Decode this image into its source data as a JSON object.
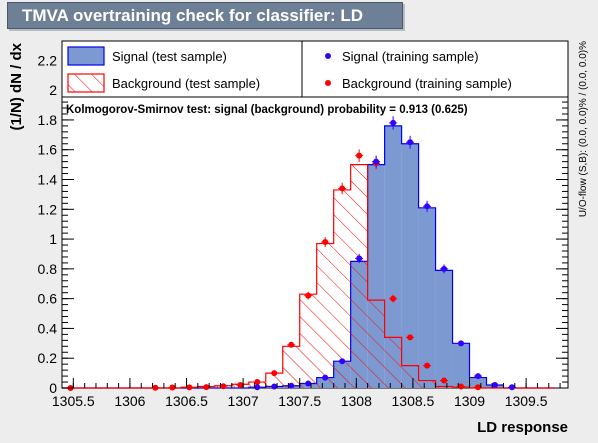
{
  "title": "TMVA overtraining check for classifier: LD",
  "colors": {
    "background": "#ededed",
    "title_box": "#6e8096",
    "signal_fill": "#7d99d1",
    "signal_line": "#0000ee",
    "background_line": "#ff0000",
    "signal_marker": "#3300ff",
    "background_marker": "#ff0000"
  },
  "chart_data": {
    "type": "histogram",
    "xlabel": "LD response",
    "ylabel": "(1/N) dN / dx",
    "xlim": [
      1305.4,
      1309.87
    ],
    "ylim": [
      0,
      2.33
    ],
    "xticks": [
      1305.5,
      1306,
      1306.5,
      1307,
      1307.5,
      1308,
      1308.5,
      1309,
      1309.5
    ],
    "xtick_labels": [
      "1305.5",
      "1306",
      "1306.5",
      "1307",
      "1307.5",
      "1308",
      "1308.5",
      "1309",
      "1309.5"
    ],
    "yticks": [
      0,
      0.2,
      0.4,
      0.6,
      0.8,
      1,
      1.2,
      1.4,
      1.6,
      1.8,
      2,
      2.2
    ],
    "ytick_labels": [
      "0",
      "0.2",
      "0.4",
      "0.6",
      "0.8",
      "1",
      "1.2",
      "1.4",
      "1.6",
      "1.8",
      "2",
      "2.2"
    ],
    "bin_edges": [
      1305.4,
      1305.55,
      1305.7,
      1305.85,
      1306.0,
      1306.15,
      1306.3,
      1306.45,
      1306.6,
      1306.75,
      1306.9,
      1307.05,
      1307.2,
      1307.35,
      1307.5,
      1307.65,
      1307.8,
      1307.95,
      1308.1,
      1308.25,
      1308.4,
      1308.55,
      1308.7,
      1308.85,
      1309.0,
      1309.15,
      1309.3,
      1309.45,
      1309.6,
      1309.75
    ],
    "series": [
      {
        "name": "Signal (test sample)",
        "kind": "filled-histogram",
        "values": [
          0,
          0,
          0,
          0,
          0,
          0,
          0,
          0,
          0,
          0,
          0,
          0.005,
          0.01,
          0.015,
          0.03,
          0.07,
          0.18,
          0.85,
          1.5,
          1.76,
          1.64,
          1.21,
          0.79,
          0.3,
          0.07,
          0.02,
          0,
          0,
          0
        ]
      },
      {
        "name": "Background (test sample)",
        "kind": "hatched-histogram",
        "values": [
          0,
          0,
          0,
          0,
          0,
          0,
          0,
          0.005,
          0.01,
          0.015,
          0.025,
          0.04,
          0.1,
          0.28,
          0.63,
          0.97,
          1.33,
          1.5,
          0.59,
          0.34,
          0.15,
          0.05,
          0.01,
          0.005,
          0,
          0,
          0,
          0,
          0
        ]
      },
      {
        "name": "Signal (training sample)",
        "kind": "markers",
        "values": [
          null,
          null,
          null,
          null,
          null,
          null,
          null,
          null,
          null,
          null,
          null,
          0.005,
          0.01,
          0.015,
          0.03,
          0.07,
          0.18,
          0.87,
          1.52,
          1.78,
          1.65,
          1.22,
          0.8,
          0.3,
          0.08,
          0.02,
          0.005,
          null,
          null
        ]
      },
      {
        "name": "Background (training sample)",
        "kind": "markers",
        "values": [
          0,
          null,
          null,
          null,
          null,
          0.002,
          0.003,
          0.004,
          0.006,
          0.012,
          0.02,
          0.04,
          0.1,
          0.29,
          0.62,
          0.98,
          1.34,
          1.56,
          1.51,
          0.6,
          0.34,
          0.15,
          0.05,
          0.01,
          0.005,
          null,
          null,
          null,
          null
        ]
      }
    ],
    "legend": {
      "placement": "top",
      "entries": [
        "Signal (test sample)",
        "Signal (training sample)",
        "Background (test sample)",
        "Background (training sample)"
      ]
    },
    "annotation": "Kolmogorov-Smirnov test: signal (background) probability = 0.913 (0.625)",
    "side_label": "U/O-flow (S,B): (0.0, 0.0)% / (0.0, 0.0)%"
  }
}
